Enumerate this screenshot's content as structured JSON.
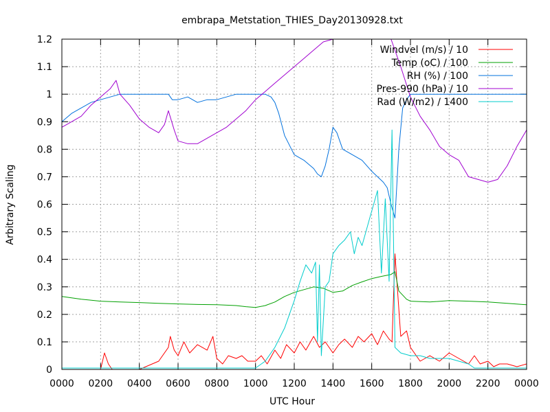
{
  "chart_data": {
    "type": "line",
    "title": "embrapa_Metstation_THIES_Day20130928.txt",
    "xlabel": "UTC Hour",
    "ylabel": "Arbitrary Scaling",
    "xlim": [
      0,
      24
    ],
    "ylim": [
      0,
      1.2
    ],
    "grid": true,
    "legend_position": "top-right",
    "x_ticks": [
      {
        "v": 0,
        "label": "0000"
      },
      {
        "v": 2,
        "label": "0200"
      },
      {
        "v": 4,
        "label": "0400"
      },
      {
        "v": 6,
        "label": "0600"
      },
      {
        "v": 8,
        "label": "0800"
      },
      {
        "v": 10,
        "label": "1000"
      },
      {
        "v": 12,
        "label": "1200"
      },
      {
        "v": 14,
        "label": "1400"
      },
      {
        "v": 16,
        "label": "1600"
      },
      {
        "v": 18,
        "label": "1800"
      },
      {
        "v": 20,
        "label": "2000"
      },
      {
        "v": 22,
        "label": "2200"
      },
      {
        "v": 24,
        "label": "0000"
      }
    ],
    "y_ticks": [
      {
        "v": 0,
        "label": "0"
      },
      {
        "v": 0.1,
        "label": "0.1"
      },
      {
        "v": 0.2,
        "label": "0.2"
      },
      {
        "v": 0.3,
        "label": "0.3"
      },
      {
        "v": 0.4,
        "label": "0.4"
      },
      {
        "v": 0.5,
        "label": "0.5"
      },
      {
        "v": 0.6,
        "label": "0.6"
      },
      {
        "v": 0.7,
        "label": "0.7"
      },
      {
        "v": 0.8,
        "label": "0.8"
      },
      {
        "v": 0.9,
        "label": "0.9"
      },
      {
        "v": 1,
        "label": "1"
      },
      {
        "v": 1.1,
        "label": "1.1"
      },
      {
        "v": 1.2,
        "label": "1.2"
      }
    ],
    "series": [
      {
        "name": "Windvel (m/s) / 10",
        "color": "#ff0000",
        "x": [
          0,
          1,
          2,
          2.2,
          2.4,
          2.6,
          2.8,
          3,
          4,
          5,
          5.5,
          5.6,
          5.8,
          6,
          6.3,
          6.6,
          7,
          7.5,
          7.8,
          8,
          8.3,
          8.6,
          9,
          9.3,
          9.6,
          10,
          10.3,
          10.6,
          11,
          11.3,
          11.6,
          12,
          12.3,
          12.6,
          13,
          13.3,
          13.6,
          14,
          14.3,
          14.6,
          15,
          15.3,
          15.6,
          16,
          16.3,
          16.6,
          16.9,
          17.05,
          17.2,
          17.5,
          17.8,
          18,
          18.5,
          19,
          19.5,
          20,
          20.5,
          21,
          21.3,
          21.6,
          22,
          22.3,
          22.6,
          23,
          23.5,
          24
        ],
        "y": [
          0,
          0,
          0,
          0.06,
          0.02,
          0,
          0,
          0,
          0,
          0.03,
          0.08,
          0.12,
          0.07,
          0.05,
          0.1,
          0.06,
          0.09,
          0.07,
          0.12,
          0.04,
          0.02,
          0.05,
          0.04,
          0.05,
          0.03,
          0.03,
          0.05,
          0.02,
          0.07,
          0.04,
          0.09,
          0.06,
          0.1,
          0.07,
          0.12,
          0.08,
          0.1,
          0.06,
          0.09,
          0.11,
          0.08,
          0.12,
          0.1,
          0.13,
          0.09,
          0.14,
          0.11,
          0.1,
          0.42,
          0.12,
          0.14,
          0.08,
          0.03,
          0.05,
          0.03,
          0.06,
          0.04,
          0.02,
          0.05,
          0.02,
          0.03,
          0.01,
          0.02,
          0.02,
          0.01,
          0.02
        ]
      },
      {
        "name": "Temp (oC) / 100",
        "color": "#00a000",
        "x": [
          0,
          1,
          2,
          3,
          4,
          5,
          6,
          7,
          8,
          9,
          9.5,
          10,
          10.5,
          11,
          11.5,
          12,
          12.5,
          13,
          13.5,
          14,
          14.5,
          15,
          15.5,
          16,
          16.5,
          17,
          17.2,
          17.4,
          17.8,
          18,
          19,
          20,
          21,
          22,
          23,
          24
        ],
        "y": [
          0.265,
          0.255,
          0.248,
          0.245,
          0.243,
          0.24,
          0.238,
          0.236,
          0.235,
          0.232,
          0.228,
          0.225,
          0.232,
          0.245,
          0.265,
          0.28,
          0.29,
          0.3,
          0.295,
          0.28,
          0.285,
          0.305,
          0.318,
          0.33,
          0.338,
          0.345,
          0.355,
          0.285,
          0.255,
          0.248,
          0.245,
          0.25,
          0.248,
          0.245,
          0.24,
          0.235
        ]
      },
      {
        "name": "RH (%) / 100",
        "color": "#0070dd",
        "x": [
          0,
          0.5,
          1,
          1.5,
          2,
          2.5,
          3,
          4,
          5,
          5.5,
          5.7,
          6,
          6.5,
          7,
          7.5,
          8,
          9,
          10,
          10.5,
          10.8,
          11,
          11.2,
          11.5,
          12,
          12.5,
          13,
          13.2,
          13.4,
          13.6,
          13.8,
          14,
          14.2,
          14.5,
          15,
          15.5,
          16,
          16.3,
          16.6,
          16.8,
          17,
          17.2,
          17.4,
          17.6,
          17.8,
          18,
          19,
          20,
          21,
          22,
          23,
          24
        ],
        "y": [
          0.9,
          0.93,
          0.95,
          0.97,
          0.98,
          0.99,
          1.0,
          1.0,
          1.0,
          1.0,
          0.98,
          0.98,
          0.99,
          0.97,
          0.98,
          0.98,
          1.0,
          1.0,
          1.0,
          0.99,
          0.97,
          0.93,
          0.85,
          0.78,
          0.76,
          0.73,
          0.71,
          0.7,
          0.74,
          0.8,
          0.88,
          0.86,
          0.8,
          0.78,
          0.76,
          0.72,
          0.7,
          0.68,
          0.66,
          0.6,
          0.55,
          0.8,
          0.95,
          0.98,
          1.0,
          1.0,
          1.0,
          1.0,
          1.0,
          1.0,
          1.0
        ]
      },
      {
        "name": "Pres-990 (hPa) / 10",
        "color": "#a000d0",
        "x": [
          0,
          0.5,
          1,
          1.5,
          2,
          2.5,
          2.8,
          3,
          3.5,
          4,
          4.5,
          5,
          5.3,
          5.5,
          5.8,
          6,
          6.5,
          7,
          7.5,
          8,
          8.5,
          9,
          9.5,
          10,
          10.5,
          11,
          11.5,
          12,
          12.5,
          13,
          13.5,
          14,
          14.5,
          15,
          15.5,
          16,
          16.5,
          17,
          17.5,
          18,
          18.5,
          19,
          19.5,
          20,
          20.5,
          21,
          21.5,
          22,
          22.5,
          23,
          23.5,
          24
        ],
        "y": [
          0.88,
          0.9,
          0.92,
          0.96,
          0.99,
          1.02,
          1.05,
          1.0,
          0.96,
          0.91,
          0.88,
          0.86,
          0.89,
          0.94,
          0.87,
          0.83,
          0.82,
          0.82,
          0.84,
          0.86,
          0.88,
          0.91,
          0.94,
          0.98,
          1.01,
          1.04,
          1.07,
          1.1,
          1.13,
          1.16,
          1.19,
          1.2,
          1.2,
          1.2,
          1.2,
          1.2,
          1.2,
          1.2,
          1.1,
          0.99,
          0.92,
          0.87,
          0.81,
          0.78,
          0.76,
          0.7,
          0.69,
          0.68,
          0.69,
          0.74,
          0.81,
          0.87
        ]
      },
      {
        "name": "Rad (W/m2) / 1400",
        "color": "#00cccc",
        "x": [
          0,
          5,
          10,
          10.5,
          11,
          11.5,
          12,
          12.3,
          12.6,
          12.9,
          13.1,
          13.2,
          13.3,
          13.4,
          13.6,
          13.8,
          14,
          14.3,
          14.6,
          14.9,
          15.1,
          15.3,
          15.5,
          15.7,
          15.9,
          16.1,
          16.3,
          16.5,
          16.7,
          16.9,
          17.05,
          17.2,
          17.5,
          18,
          18.5,
          19,
          19.5,
          20,
          20.5,
          21,
          21.3,
          22,
          24
        ],
        "y": [
          0.005,
          0.005,
          0.005,
          0.03,
          0.08,
          0.15,
          0.25,
          0.32,
          0.38,
          0.35,
          0.39,
          0.1,
          0.38,
          0.05,
          0.3,
          0.32,
          0.42,
          0.45,
          0.47,
          0.5,
          0.42,
          0.48,
          0.45,
          0.5,
          0.55,
          0.6,
          0.65,
          0.35,
          0.62,
          0.32,
          0.87,
          0.08,
          0.06,
          0.05,
          0.05,
          0.04,
          0.04,
          0.04,
          0.03,
          0.02,
          0.005,
          0.005,
          0.005
        ]
      }
    ]
  }
}
